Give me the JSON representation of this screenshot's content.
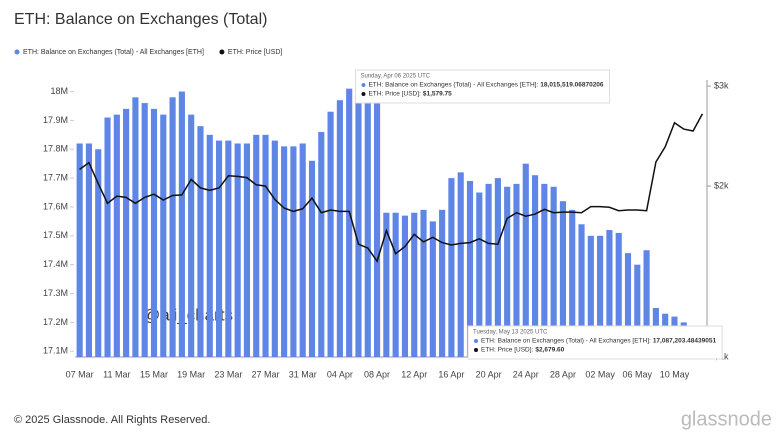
{
  "chart_data": {
    "type": "bar_line",
    "title": "ETH: Balance on Exchanges (Total)",
    "categories": [
      "07 Mar",
      null,
      null,
      null,
      "11 Mar",
      null,
      null,
      null,
      "15 Mar",
      null,
      null,
      null,
      "19 Mar",
      null,
      null,
      null,
      "23 Mar",
      null,
      null,
      null,
      "27 Mar",
      null,
      null,
      null,
      "31 Mar",
      null,
      null,
      null,
      "04 Apr",
      null,
      null,
      null,
      "08 Apr",
      null,
      null,
      null,
      "12 Apr",
      null,
      null,
      null,
      "16 Apr",
      null,
      null,
      null,
      "20 Apr",
      null,
      null,
      null,
      "24 Apr",
      null,
      null,
      null,
      "28 Apr",
      null,
      null,
      null,
      "02 May",
      null,
      null,
      null,
      "06 May",
      null,
      null,
      null,
      "10 May",
      null,
      null,
      null
    ],
    "series": [
      {
        "name": "ETH: Balance on Exchanges (Total) - All Exchanges [ETH]",
        "color": "#5f86e6",
        "kind": "bar",
        "axis": "y",
        "values": [
          17820000,
          17820000,
          17800000,
          17910000,
          17920000,
          17940000,
          17980000,
          17960000,
          17940000,
          17920000,
          17980000,
          18000000,
          17920000,
          17880000,
          17850000,
          17830000,
          17830000,
          17820000,
          17820000,
          17850000,
          17850000,
          17830000,
          17810000,
          17810000,
          17820000,
          17760000,
          17860000,
          17930000,
          17970000,
          18010000,
          18015519.06870206,
          18010000,
          18000000,
          17580000,
          17580000,
          17570000,
          17580000,
          17590000,
          17550000,
          17590000,
          17700000,
          17720000,
          17690000,
          17650000,
          17680000,
          17700000,
          17670000,
          17680000,
          17750000,
          17710000,
          17680000,
          17670000,
          17620000,
          17590000,
          17540000,
          17500000,
          17500000,
          17520000,
          17510000,
          17440000,
          17400000,
          17450000,
          17250000,
          17230000,
          17220000,
          17200000,
          17150000,
          17087203.48439051
        ]
      },
      {
        "name": "ETH: Price [USD]",
        "color": "#111111",
        "kind": "line",
        "axis": "y2",
        "values": [
          2140,
          2200,
          2020,
          1865,
          1920,
          1910,
          1865,
          1910,
          1935,
          1890,
          1925,
          1930,
          2055,
          1985,
          1965,
          1985,
          2085,
          2080,
          2070,
          2010,
          2000,
          1895,
          1830,
          1805,
          1825,
          1905,
          1795,
          1815,
          1805,
          1805,
          1579.75,
          1555,
          1475,
          1670,
          1520,
          1565,
          1645,
          1595,
          1625,
          1590,
          1575,
          1585,
          1590,
          1615,
          1585,
          1580,
          1755,
          1795,
          1770,
          1785,
          1820,
          1795,
          1800,
          1800,
          1795,
          1840,
          1840,
          1835,
          1810,
          1815,
          1815,
          1810,
          2205,
          2345,
          2585,
          2520,
          2500,
          2679.6
        ]
      }
    ],
    "ylim": [
      17080000,
      18040000
    ],
    "yticks": [
      {
        "value": 17100000,
        "label": "17.1M"
      },
      {
        "value": 17200000,
        "label": "17.2M"
      },
      {
        "value": 17300000,
        "label": "17.3M"
      },
      {
        "value": 17400000,
        "label": "17.4M"
      },
      {
        "value": 17500000,
        "label": "17.5M"
      },
      {
        "value": 17600000,
        "label": "17.6M"
      },
      {
        "value": 17700000,
        "label": "17.7M"
      },
      {
        "value": 17800000,
        "label": "17.8M"
      },
      {
        "value": 17900000,
        "label": "17.9M"
      },
      {
        "value": 18000000,
        "label": "18M"
      }
    ],
    "y2lim": [
      1000,
      3075
    ],
    "y2ticks": [
      {
        "value": 1000,
        "label": "$1k"
      },
      {
        "value": 2000,
        "label": "$2k"
      },
      {
        "value": 3000,
        "label": "$3k"
      }
    ],
    "y2log": true,
    "grid": false,
    "tooltips": [
      {
        "index": 30,
        "date": "Sunday, Apr 06 2025 UTC",
        "rows": [
          {
            "label": "ETH: Balance on Exchanges (Total) - All Exchanges [ETH]:",
            "value": "18,015,519.06870206"
          },
          {
            "label": "ETH: Price [USD]:",
            "value": "$1,579.75"
          }
        ]
      },
      {
        "index": 67,
        "date": "Tuesday, May 13 2025 UTC",
        "rows": [
          {
            "label": "ETH: Balance on Exchanges (Total) - All Exchanges [ETH]:",
            "value": "17,087,203.48439051"
          },
          {
            "label": "ETH: Price [USD]:",
            "value": "$2,679.60"
          }
        ]
      }
    ],
    "watermark": "@ali_charts",
    "footer": "© 2025 Glassnode. All Rights Reserved.",
    "brand": "glassnode"
  }
}
